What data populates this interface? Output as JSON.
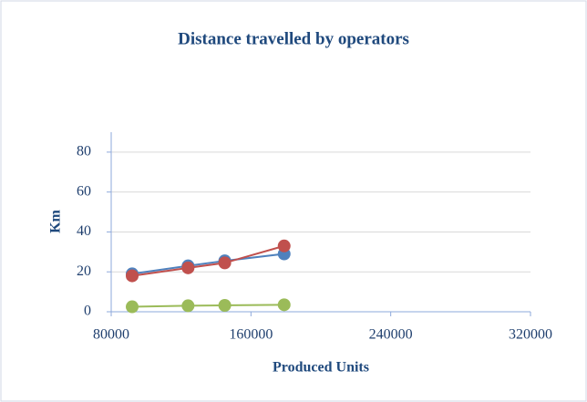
{
  "chart_data": {
    "type": "line",
    "title": "Distance travelled by operators",
    "x_label": "Produced Units",
    "y_label": "Km",
    "x": [
      92000,
      124000,
      145000,
      179000
    ],
    "series": [
      {
        "color": "#4f81bd",
        "values": [
          19,
          23,
          25.5,
          29
        ]
      },
      {
        "color": "#c0504d",
        "values": [
          18,
          22,
          24.5,
          33
        ]
      },
      {
        "color": "#9bbb59",
        "values": [
          2.5,
          3,
          3.2,
          3.5
        ]
      }
    ],
    "xlim": [
      80000,
      320000
    ],
    "xticks": [
      80000,
      160000,
      240000,
      320000
    ],
    "ylim": [
      0,
      90
    ],
    "yticks": [
      0,
      20,
      40,
      60,
      80
    ],
    "grid": true
  }
}
